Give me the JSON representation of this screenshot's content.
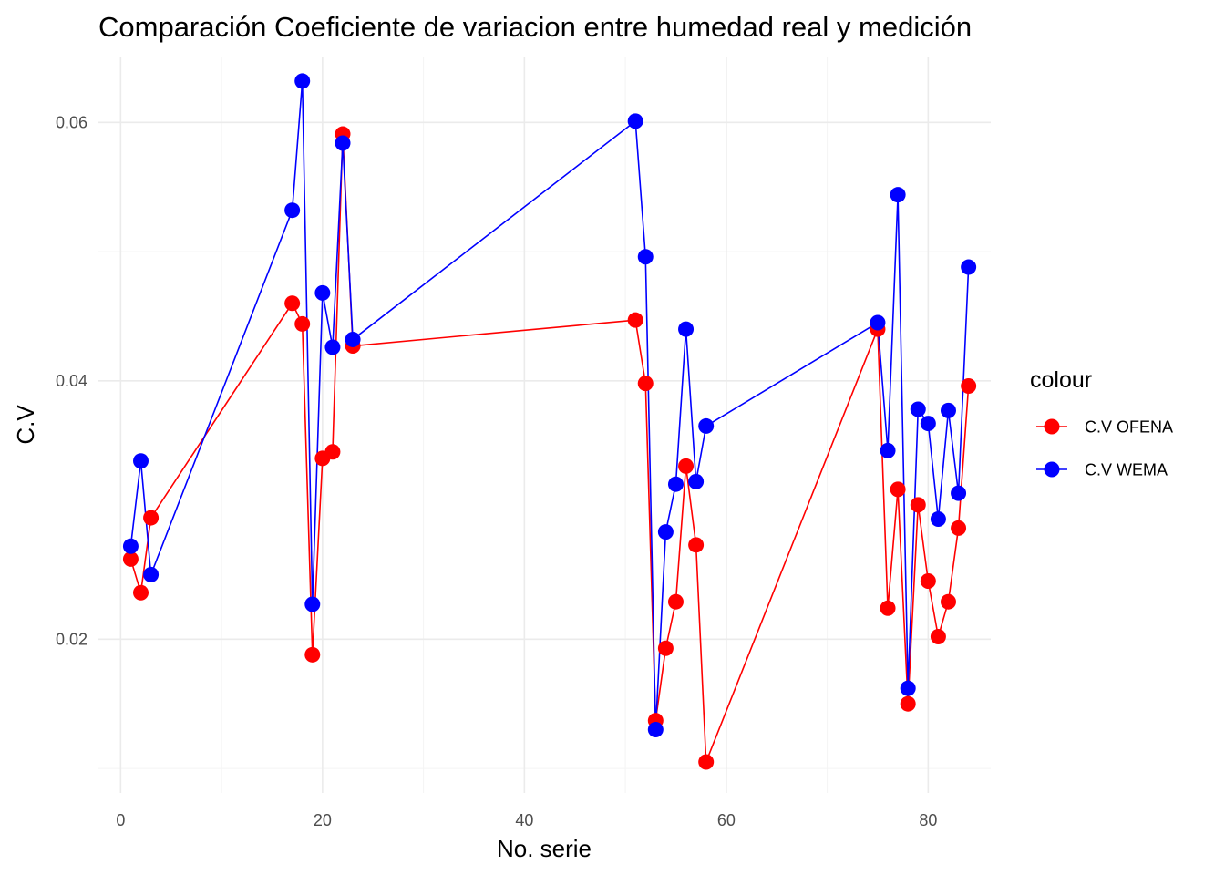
{
  "chart_data": {
    "type": "line",
    "title": "Comparación Coeficiente de variacion entre  humedad real y medición",
    "xlabel": "No. serie",
    "ylabel": "C.V",
    "xlim": [
      -2.2,
      86.2
    ],
    "ylim": [
      0.0081,
      0.0651
    ],
    "x_ticks": [
      0,
      20,
      40,
      60,
      80
    ],
    "x_tick_labels": [
      "0",
      "20",
      "40",
      "60",
      "80"
    ],
    "y_ticks": [
      0.02,
      0.04,
      0.06
    ],
    "y_tick_labels": [
      "0.02",
      "0.04",
      "0.06"
    ],
    "grid": true,
    "legend": {
      "title": "colour",
      "position": "right"
    },
    "series": [
      {
        "name": "C.V OFENA",
        "color": "#ff0000",
        "x": [
          1,
          2,
          3,
          17,
          18,
          19,
          20,
          21,
          22,
          23,
          51,
          52,
          53,
          54,
          55,
          56,
          57,
          58,
          75,
          76,
          77,
          78,
          79,
          80,
          81,
          82,
          83,
          84
        ],
        "y": [
          0.0262,
          0.0236,
          0.0294,
          0.046,
          0.0444,
          0.0188,
          0.034,
          0.0345,
          0.0591,
          0.0427,
          0.0447,
          0.0398,
          0.0137,
          0.0193,
          0.0229,
          0.0334,
          0.0273,
          0.0105,
          0.044,
          0.0224,
          0.0316,
          0.015,
          0.0304,
          0.0245,
          0.0202,
          0.0229,
          0.0286,
          0.0396
        ]
      },
      {
        "name": "C.V WEMA",
        "color": "#0000ff",
        "x": [
          1,
          2,
          3,
          17,
          18,
          19,
          20,
          21,
          22,
          23,
          51,
          52,
          53,
          54,
          55,
          56,
          57,
          58,
          75,
          76,
          77,
          78,
          79,
          80,
          81,
          82,
          83,
          84
        ],
        "y": [
          0.0272,
          0.0338,
          0.025,
          0.0532,
          0.0632,
          0.0227,
          0.0468,
          0.0426,
          0.0584,
          0.0432,
          0.0601,
          0.0496,
          0.013,
          0.0283,
          0.032,
          0.044,
          0.0322,
          0.0365,
          0.0445,
          0.0346,
          0.0544,
          0.0162,
          0.0378,
          0.0367,
          0.0293,
          0.0377,
          0.0313,
          0.0488
        ]
      }
    ]
  }
}
